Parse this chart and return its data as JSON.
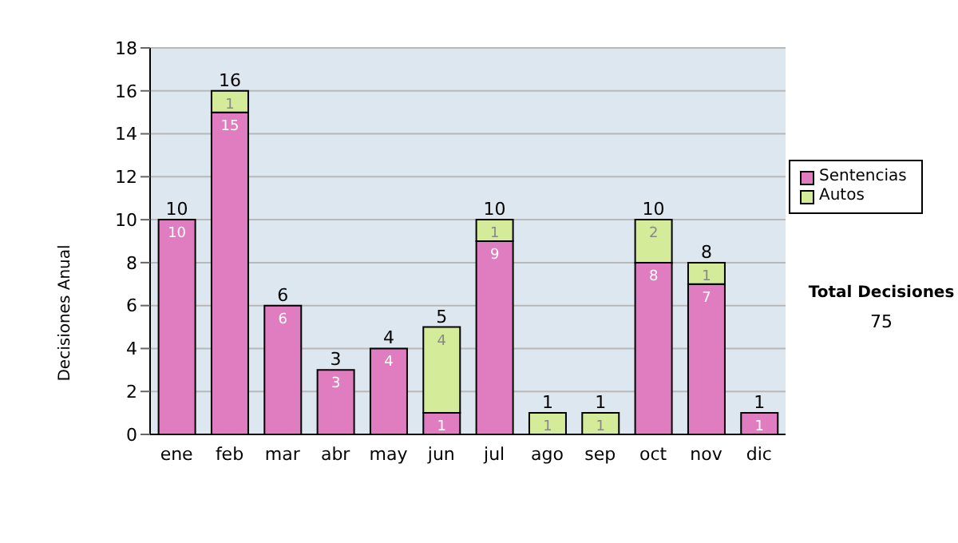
{
  "chart_data": {
    "type": "bar",
    "stacked": true,
    "ylabel": "Decisiones Anual",
    "categories": [
      "ene",
      "feb",
      "mar",
      "abr",
      "may",
      "jun",
      "jul",
      "ago",
      "sep",
      "oct",
      "nov",
      "dic"
    ],
    "series": [
      {
        "name": "Sentencias",
        "color": "#e07cc0",
        "values": [
          10,
          15,
          6,
          3,
          4,
          1,
          9,
          0,
          0,
          8,
          7,
          1
        ],
        "value_labels": [
          "10",
          "15",
          "6",
          "3",
          "4",
          "1",
          "9",
          null,
          null,
          "8",
          "7",
          "1"
        ]
      },
      {
        "name": "Autos",
        "color": "#d4eb9a",
        "values": [
          0,
          1,
          0,
          0,
          0,
          4,
          1,
          1,
          1,
          2,
          1,
          0
        ],
        "value_labels": [
          null,
          "1",
          null,
          null,
          null,
          "4",
          "1",
          "1",
          "1",
          "2",
          "1",
          null
        ]
      }
    ],
    "totals": [
      "10",
      "16",
      "6",
      "3",
      "4",
      "5",
      "10",
      "1",
      "1",
      "10",
      "8",
      "1"
    ],
    "ylim": [
      0,
      18
    ],
    "yticks": [
      0,
      2,
      4,
      6,
      8,
      10,
      12,
      14,
      16,
      18
    ],
    "grid": "y",
    "legend": "right",
    "annotations": [
      "Total Decisiones",
      "75"
    ]
  }
}
